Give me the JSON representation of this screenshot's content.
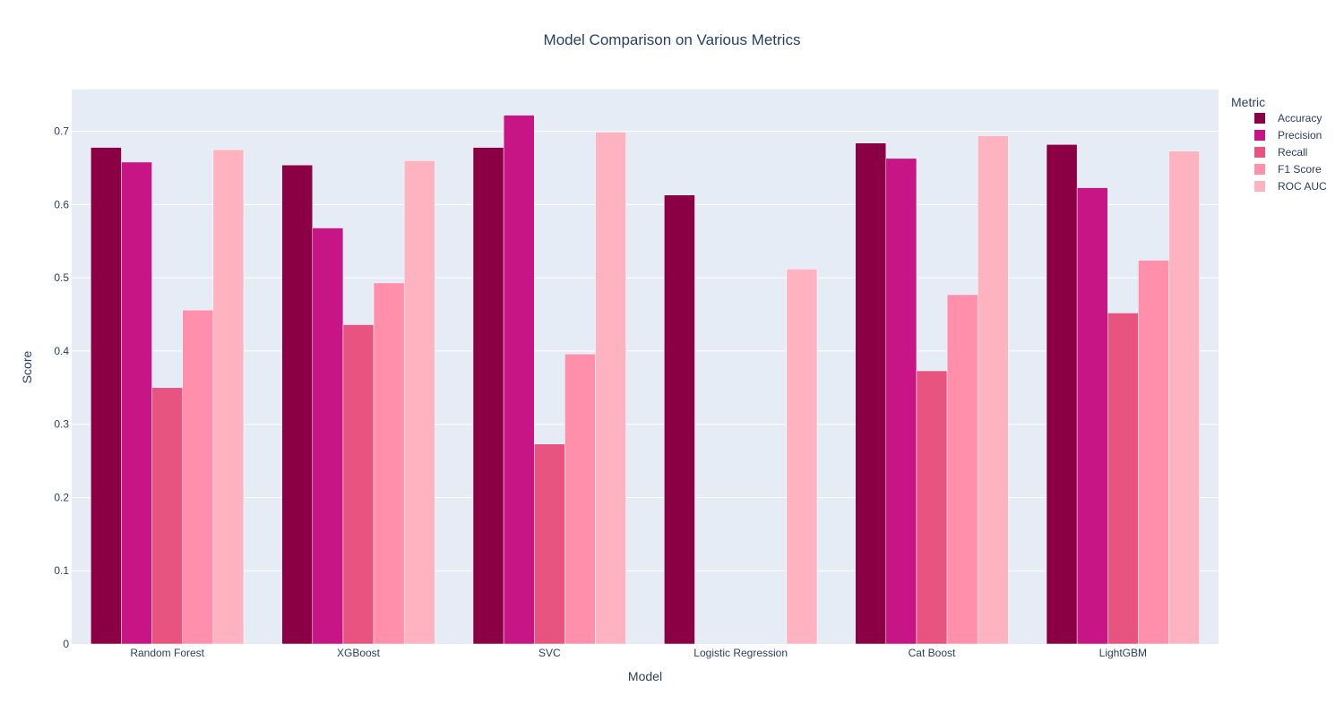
{
  "chart_data": {
    "type": "bar",
    "title": "Model Comparison on Various Metrics",
    "xlabel": "Model",
    "ylabel": "Score",
    "ylim": [
      0,
      0.757
    ],
    "yticks": [
      0,
      0.1,
      0.2,
      0.3,
      0.4,
      0.5,
      0.6,
      0.7
    ],
    "ytick_labels": [
      "0",
      "0.1",
      "0.2",
      "0.3",
      "0.4",
      "0.5",
      "0.6",
      "0.7"
    ],
    "grid": true,
    "legend_title": "Metric",
    "legend_position": "top-right",
    "categories": [
      "Random Forest",
      "XGBoost",
      "SVC",
      "Logistic Regression",
      "Cat Boost",
      "LightGBM"
    ],
    "series": [
      {
        "name": "Accuracy",
        "color": "#8b0045",
        "values": [
          0.678,
          0.654,
          0.678,
          0.613,
          0.684,
          0.682
        ]
      },
      {
        "name": "Precision",
        "color": "#c71585",
        "values": [
          0.658,
          0.568,
          0.722,
          0,
          0.663,
          0.623
        ]
      },
      {
        "name": "Recall",
        "color": "#e75480",
        "values": [
          0.35,
          0.436,
          0.273,
          0,
          0.373,
          0.452
        ]
      },
      {
        "name": "F1 Score",
        "color": "#ff8fab",
        "values": [
          0.456,
          0.493,
          0.396,
          0,
          0.477,
          0.524
        ]
      },
      {
        "name": "ROC AUC",
        "color": "#ffb3c1",
        "values": [
          0.675,
          0.66,
          0.699,
          0.512,
          0.694,
          0.673
        ]
      }
    ]
  },
  "colors": {
    "plot_background": "#e5ecf6",
    "gridline": "#ffffff",
    "text": "#2a3f5f"
  }
}
